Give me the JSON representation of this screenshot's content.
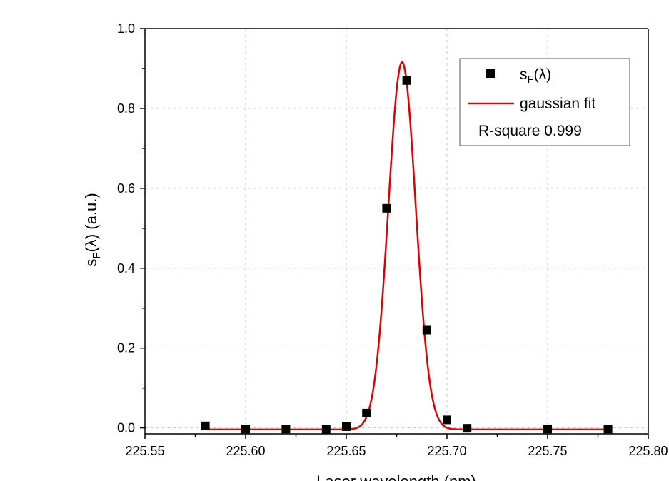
{
  "chart_data": {
    "type": "scatter",
    "xlabel": "Laser wavelength (nm)",
    "ylabel": "s_F(λ) (a.u.)",
    "ylabel_parts": {
      "base": "s",
      "sub": "F",
      "rest": "(λ) (a.u.)"
    },
    "xlim": [
      225.55,
      225.8
    ],
    "ylim": [
      -0.015,
      1.0
    ],
    "x_ticks": [
      225.55,
      225.6,
      225.65,
      225.7,
      225.75,
      225.8
    ],
    "x_tick_labels": [
      "225.55",
      "225.60",
      "225.65",
      "225.70",
      "225.75",
      "225.80"
    ],
    "y_ticks": [
      0.0,
      0.2,
      0.4,
      0.6,
      0.8,
      1.0
    ],
    "y_tick_labels": [
      "0.0",
      "0.2",
      "0.4",
      "0.6",
      "0.8",
      "1.0"
    ],
    "grid": true,
    "legend_position": "top-right",
    "series": [
      {
        "name": "s_F(λ)",
        "label_parts": {
          "base": "s",
          "sub": "F",
          "rest": "(λ)"
        },
        "kind": "scatter",
        "marker": "square",
        "color": "#000000",
        "x": [
          225.58,
          225.6,
          225.62,
          225.64,
          225.65,
          225.66,
          225.67,
          225.68,
          225.69,
          225.7,
          225.71,
          225.75,
          225.78
        ],
        "y": [
          0.005,
          -0.003,
          -0.003,
          -0.004,
          0.003,
          0.037,
          0.55,
          0.87,
          0.245,
          0.02,
          -0.001,
          -0.003,
          -0.003
        ]
      },
      {
        "name": "gaussian fit",
        "kind": "line",
        "color": "#e00000",
        "gaussian": {
          "amplitude": 0.92,
          "center": 225.6777,
          "sigma": 0.0068,
          "offset": -0.004
        },
        "x_range": [
          225.58,
          225.78
        ]
      }
    ],
    "legend_note": "R-square 0.999"
  }
}
